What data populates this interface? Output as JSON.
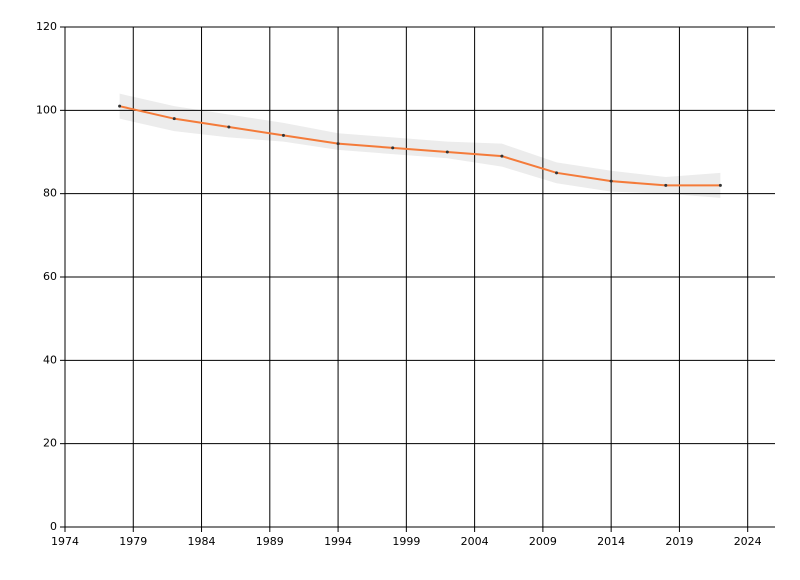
{
  "chart_data": {
    "type": "line",
    "x": [
      1978,
      1982,
      1986,
      1990,
      1994,
      1998,
      2002,
      2006,
      2010,
      2014,
      2018,
      2022
    ],
    "series": [
      {
        "color": "#f47b3a",
        "values": [
          101,
          98,
          96,
          94,
          92,
          91,
          90,
          89,
          85,
          83,
          82,
          82
        ]
      }
    ],
    "band": {
      "color": "#ececec",
      "upper": [
        104,
        101,
        99,
        97,
        94.5,
        93.5,
        92.5,
        92,
        87.5,
        85.5,
        84,
        85
      ],
      "lower": [
        98,
        95,
        93.5,
        92.5,
        90.5,
        89.5,
        88.5,
        86.5,
        82.5,
        80.5,
        80,
        79
      ]
    },
    "marker_color": "#333333",
    "xlim": [
      1974,
      2026
    ],
    "xticks": [
      1974,
      1979,
      1984,
      1989,
      1994,
      1999,
      2004,
      2009,
      2014,
      2019,
      2024
    ],
    "ylim": [
      0,
      120
    ],
    "yticks": [
      0,
      20,
      40,
      60,
      80,
      100,
      120
    ],
    "grid": true
  }
}
